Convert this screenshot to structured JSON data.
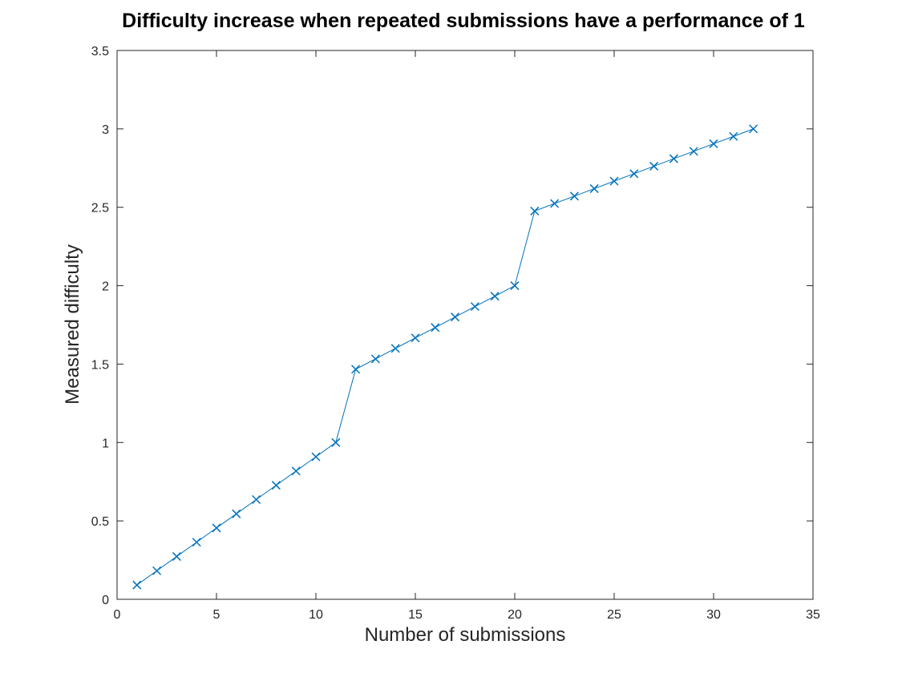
{
  "chart_data": {
    "type": "line",
    "title": "Difficulty increase when repeated submissions have a performance of 1",
    "xlabel": "Number of submissions",
    "ylabel": "Measured difficulty",
    "xlim": [
      0,
      35
    ],
    "ylim": [
      0,
      3.5
    ],
    "xticks": [
      0,
      5,
      10,
      15,
      20,
      25,
      30,
      35
    ],
    "yticks": [
      0,
      0.5,
      1,
      1.5,
      2,
      2.5,
      3,
      3.5
    ],
    "xtick_labels": [
      "0",
      "5",
      "10",
      "15",
      "20",
      "25",
      "30",
      "35"
    ],
    "ytick_labels": [
      "0",
      "0.5",
      "1",
      "1.5",
      "2",
      "2.5",
      "3",
      "3.5"
    ],
    "grid": false,
    "marker": "x",
    "color": "#0072BD",
    "series": [
      {
        "x": [
          1,
          2,
          3,
          4,
          5,
          6,
          7,
          8,
          9,
          10,
          11,
          12,
          13,
          14,
          15,
          16,
          17,
          18,
          19,
          20,
          21,
          22,
          23,
          24,
          25,
          26,
          27,
          28,
          29,
          30,
          31,
          32
        ],
        "y": [
          0.091,
          0.182,
          0.273,
          0.364,
          0.455,
          0.545,
          0.636,
          0.727,
          0.818,
          0.909,
          1.0,
          1.467,
          1.533,
          1.6,
          1.667,
          1.733,
          1.8,
          1.867,
          1.933,
          2.0,
          2.476,
          2.524,
          2.571,
          2.619,
          2.667,
          2.714,
          2.762,
          2.81,
          2.857,
          2.905,
          2.952,
          3.0
        ]
      }
    ]
  }
}
